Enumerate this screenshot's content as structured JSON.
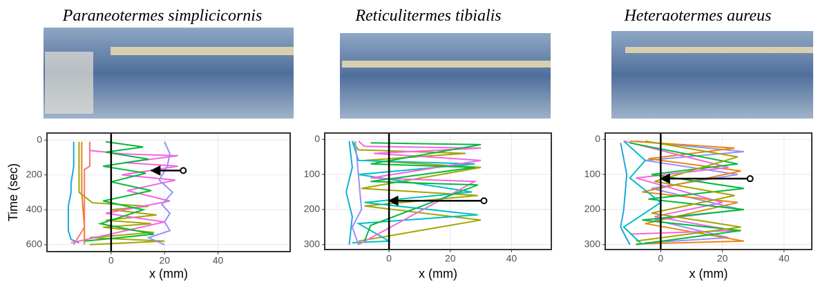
{
  "chart_data": [
    {
      "type": "line",
      "title": "Paraneotermes simplicicornis",
      "xlabel": "x (mm)",
      "ylabel": "Time (sec)",
      "xlim": [
        -24,
        67
      ],
      "xticks": [
        0,
        20,
        40
      ],
      "ylim": [
        -40,
        640
      ],
      "yticks": [
        0,
        200,
        400,
        600
      ],
      "y_inverted": true,
      "grid": true,
      "zero_line": 0,
      "arrow": {
        "from": [
          27,
          175
        ],
        "to": [
          15,
          175
        ]
      },
      "series": [
        {
          "color": "#1aa7d9",
          "x": [
            -14,
            -14,
            -15,
            -15,
            -16,
            -16,
            -16,
            -15,
            -12
          ],
          "values": [
            10,
            150,
            250,
            300,
            380,
            450,
            520,
            570,
            590
          ]
        },
        {
          "color": "#a3a500",
          "x": [
            -12,
            -12,
            -7,
            14,
            0,
            17,
            -2,
            15,
            -3,
            16,
            -8,
            20,
            -8
          ],
          "values": [
            10,
            300,
            360,
            380,
            400,
            430,
            460,
            480,
            500,
            530,
            560,
            580,
            600
          ]
        },
        {
          "color": "#f564e3",
          "x": [
            -8,
            -8,
            5,
            25,
            5,
            25,
            4,
            24,
            6,
            22,
            -2,
            20,
            -15
          ],
          "values": [
            10,
            60,
            80,
            90,
            130,
            150,
            200,
            230,
            290,
            350,
            420,
            470,
            590
          ]
        },
        {
          "color": "#00ba38",
          "x": [
            -2,
            12,
            -2,
            14,
            -3,
            13,
            0,
            15,
            -3,
            12,
            -4,
            16,
            -10
          ],
          "values": [
            10,
            40,
            70,
            110,
            150,
            190,
            240,
            290,
            350,
            400,
            480,
            540,
            580
          ]
        },
        {
          "color": "#9590ff",
          "x": [
            20,
            22,
            21,
            18,
            23,
            19,
            22,
            20,
            22,
            14,
            20
          ],
          "values": [
            10,
            80,
            150,
            230,
            300,
            370,
            420,
            470,
            520,
            560,
            600
          ]
        },
        {
          "color": "#e68613",
          "x": [
            -11,
            -11,
            -10,
            -10
          ],
          "values": [
            10,
            300,
            500,
            600
          ]
        },
        {
          "color": "#f8766d",
          "x": [
            -8,
            -8,
            -10,
            -10,
            -14
          ],
          "values": [
            10,
            150,
            170,
            500,
            600
          ]
        }
      ]
    },
    {
      "type": "line",
      "title": "Reticulitermes tibialis",
      "xlabel": "x (mm)",
      "xlim": [
        -21,
        53
      ],
      "xticks": [
        0,
        20,
        40
      ],
      "ylim": [
        -18,
        314
      ],
      "yticks": [
        0,
        100,
        200,
        300
      ],
      "y_inverted": true,
      "grid": true,
      "zero_line": 0,
      "arrow": {
        "from": [
          31,
          175
        ],
        "to": [
          0,
          175
        ]
      },
      "series": [
        {
          "color": "#a3a500",
          "x": [
            -12,
            -10,
            25,
            -8,
            30,
            -9,
            29,
            -8,
            30,
            -10
          ],
          "values": [
            5,
            30,
            40,
            60,
            80,
            140,
            160,
            190,
            230,
            290
          ]
        },
        {
          "color": "#00bfc4",
          "x": [
            -12,
            -10,
            28,
            -10,
            27,
            -8,
            29,
            -10,
            0,
            -12
          ],
          "values": [
            5,
            60,
            70,
            100,
            150,
            180,
            215,
            240,
            290,
            295
          ]
        },
        {
          "color": "#f564e3",
          "x": [
            -10,
            -8,
            30,
            -5,
            30,
            -6,
            28,
            -10
          ],
          "values": [
            5,
            20,
            25,
            40,
            60,
            110,
            120,
            300
          ]
        },
        {
          "color": "#00ba38",
          "x": [
            -6,
            30,
            -6,
            28,
            -6,
            29,
            -6,
            -8
          ],
          "values": [
            10,
            15,
            70,
            80,
            120,
            130,
            245,
            290
          ]
        },
        {
          "color": "#9590ff",
          "x": [
            -11,
            -10,
            -9,
            -12,
            -10
          ],
          "values": [
            5,
            100,
            200,
            250,
            300
          ]
        },
        {
          "color": "#1aa7d9",
          "x": [
            -13,
            -12,
            -14,
            -12,
            -13
          ],
          "values": [
            5,
            80,
            150,
            220,
            300
          ]
        }
      ]
    },
    {
      "type": "line",
      "title": "Heteraotermes aureus",
      "xlabel": "x (mm)",
      "xlim": [
        -18,
        49
      ],
      "xticks": [
        0,
        20,
        40
      ],
      "ylim": [
        -18,
        314
      ],
      "yticks": [
        0,
        100,
        200,
        300
      ],
      "y_inverted": true,
      "grid": true,
      "zero_line": 0,
      "arrow": {
        "from": [
          29,
          112
        ],
        "to": [
          0,
          112
        ]
      },
      "series": [
        {
          "color": "#9590ff",
          "x": [
            -8,
            27,
            -5,
            25,
            -3,
            26,
            -2,
            22,
            -5
          ],
          "values": [
            5,
            35,
            60,
            100,
            140,
            200,
            230,
            280,
            295
          ]
        },
        {
          "color": "#e68613",
          "x": [
            -10,
            24,
            -4,
            26,
            -6,
            25,
            -5,
            27,
            -8
          ],
          "values": [
            5,
            25,
            55,
            90,
            150,
            180,
            240,
            290,
            298
          ]
        },
        {
          "color": "#f564e3",
          "x": [
            -12,
            22,
            -8,
            20,
            -2,
            24,
            -10
          ],
          "values": [
            5,
            80,
            110,
            180,
            220,
            260,
            270
          ]
        },
        {
          "color": "#00ba38",
          "x": [
            -10,
            25,
            -3,
            27,
            -4,
            27,
            -6,
            26,
            -8
          ],
          "values": [
            10,
            70,
            100,
            140,
            170,
            200,
            230,
            260,
            300
          ]
        },
        {
          "color": "#a3a500",
          "x": [
            -5,
            25,
            -2,
            24,
            -3,
            26,
            -8
          ],
          "values": [
            5,
            50,
            120,
            160,
            210,
            250,
            290
          ]
        },
        {
          "color": "#00bfc4",
          "x": [
            -12,
            -5,
            -10,
            0,
            -12,
            -6
          ],
          "values": [
            5,
            60,
            110,
            180,
            250,
            300
          ]
        },
        {
          "color": "#1aa7d9",
          "x": [
            -13,
            -11,
            -12,
            -13,
            -10
          ],
          "values": [
            10,
            100,
            200,
            250,
            300
          ]
        }
      ]
    }
  ]
}
